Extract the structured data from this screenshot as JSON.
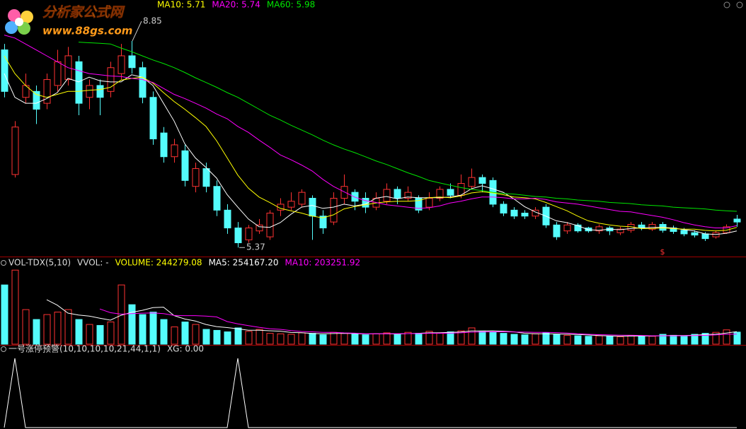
{
  "watermark": {
    "title": "分析家公式网",
    "url": "www.88gs.com"
  },
  "chart_data": [
    {
      "type": "candlestick",
      "open": [
        8.7,
        6.6,
        7.9,
        8.0,
        7.8,
        8.1,
        8.2,
        8.5,
        7.9,
        8.1,
        8.0,
        8.3,
        8.6,
        8.4,
        7.9,
        7.3,
        6.9,
        7.0,
        6.4,
        6.7,
        6.4,
        6.0,
        5.7,
        5.5,
        5.65,
        5.55,
        6.0,
        6.05,
        6.1,
        6.2,
        5.9,
        5.8,
        6.2,
        6.3,
        6.2,
        6.05,
        6.15,
        6.35,
        6.2,
        6.2,
        6.05,
        6.2,
        6.35,
        6.25,
        6.4,
        6.55,
        6.5,
        6.1,
        6.0,
        5.95,
        5.9,
        6.05,
        5.75,
        5.65,
        5.75,
        5.7,
        5.65,
        5.7,
        5.62,
        5.66,
        5.75,
        5.68,
        5.76,
        5.7,
        5.66,
        5.62,
        5.6,
        5.55,
        5.62,
        5.85
      ],
      "high": [
        8.8,
        7.5,
        8.3,
        8.1,
        8.3,
        8.7,
        8.75,
        8.6,
        8.2,
        8.2,
        8.5,
        8.8,
        8.85,
        8.5,
        8.0,
        7.4,
        7.2,
        7.1,
        6.8,
        6.8,
        6.5,
        6.1,
        5.8,
        5.75,
        5.85,
        6.0,
        6.2,
        6.3,
        6.35,
        6.25,
        6.0,
        6.3,
        6.6,
        6.35,
        6.3,
        6.3,
        6.45,
        6.4,
        6.4,
        6.25,
        6.3,
        6.4,
        6.45,
        6.6,
        6.7,
        6.6,
        6.55,
        6.15,
        6.05,
        6.0,
        6.05,
        6.1,
        5.8,
        5.8,
        5.78,
        5.72,
        5.76,
        5.73,
        5.72,
        5.8,
        5.8,
        5.8,
        5.8,
        5.74,
        5.7,
        5.66,
        5.63,
        5.66,
        5.76,
        5.92
      ],
      "low": [
        7.9,
        6.55,
        7.8,
        7.45,
        7.7,
        8.0,
        8.1,
        7.6,
        7.7,
        7.6,
        7.9,
        8.2,
        8.3,
        7.8,
        7.1,
        6.8,
        6.8,
        6.4,
        6.3,
        6.3,
        5.9,
        5.6,
        5.37,
        5.45,
        5.6,
        5.5,
        5.9,
        6.0,
        6.05,
        5.5,
        5.6,
        5.75,
        6.1,
        6.0,
        5.95,
        6.0,
        6.1,
        6.1,
        6.15,
        5.95,
        6.0,
        6.15,
        6.2,
        6.2,
        6.35,
        6.3,
        6.05,
        5.9,
        5.85,
        5.85,
        5.85,
        5.7,
        5.5,
        5.6,
        5.62,
        5.62,
        5.6,
        5.58,
        5.58,
        5.62,
        5.66,
        5.65,
        5.62,
        5.6,
        5.56,
        5.54,
        5.48,
        5.52,
        5.6,
        5.72
      ],
      "close": [
        8.0,
        7.4,
        8.1,
        7.7,
        8.2,
        8.5,
        8.6,
        7.8,
        8.1,
        7.9,
        8.4,
        8.6,
        8.4,
        7.9,
        7.2,
        6.9,
        7.1,
        6.5,
        6.7,
        6.4,
        6.0,
        5.7,
        5.45,
        5.7,
        5.75,
        5.95,
        6.1,
        6.15,
        6.3,
        5.9,
        5.7,
        6.2,
        6.4,
        6.15,
        6.05,
        6.2,
        6.35,
        6.2,
        6.3,
        6.0,
        6.2,
        6.35,
        6.25,
        6.45,
        6.55,
        6.45,
        6.1,
        5.95,
        5.9,
        5.9,
        6.0,
        5.75,
        5.55,
        5.75,
        5.65,
        5.65,
        5.72,
        5.65,
        5.68,
        5.76,
        5.7,
        5.76,
        5.66,
        5.64,
        5.6,
        5.58,
        5.52,
        5.62,
        5.72,
        5.8
      ],
      "up_color": "#ff3232",
      "down_color": "#54fcfc",
      "ylim": [
        5.23,
        9.54
      ],
      "high_label": "8.85",
      "low_label": "5.37",
      "signal": {
        "text": "$",
        "index": 62
      },
      "series": [
        {
          "name": "MA5",
          "color": "#ffffff",
          "values": [
            8.3,
            7.9,
            7.8,
            7.8,
            7.88,
            7.98,
            8.22,
            8.16,
            8.24,
            8.18,
            8.16,
            8.16,
            8.28,
            8.24,
            8.1,
            7.8,
            7.5,
            7.12,
            6.88,
            6.72,
            6.54,
            6.26,
            6.05,
            5.85,
            5.72,
            5.71,
            5.79,
            5.93,
            6.05,
            6.08,
            6.03,
            6.05,
            6.1,
            6.07,
            6.1,
            6.2,
            6.23,
            6.19,
            6.22,
            6.21,
            6.21,
            6.21,
            6.22,
            6.25,
            6.36,
            6.41,
            6.36,
            6.3,
            6.19,
            6.06,
            5.97,
            5.9,
            5.82,
            5.79,
            5.74,
            5.67,
            5.66,
            5.68,
            5.67,
            5.69,
            5.7,
            5.71,
            5.71,
            5.7,
            5.67,
            5.65,
            5.6,
            5.59,
            5.61,
            5.65
          ]
        },
        {
          "name": "MA10",
          "label": "MA10: 5.71",
          "color": "#ffff00",
          "values": [
            8.6,
            8.3,
            8.1,
            7.95,
            7.9,
            7.95,
            8.0,
            8.0,
            8.02,
            8.03,
            8.07,
            8.19,
            8.22,
            8.24,
            8.14,
            7.98,
            7.83,
            7.7,
            7.56,
            7.41,
            7.17,
            6.88,
            6.59,
            6.37,
            6.22,
            6.13,
            6.03,
            5.99,
            5.95,
            5.9,
            5.87,
            5.92,
            6.02,
            6.06,
            6.09,
            6.12,
            6.14,
            6.15,
            6.15,
            6.16,
            6.21,
            6.22,
            6.21,
            6.24,
            6.29,
            6.31,
            6.29,
            6.26,
            6.22,
            6.21,
            6.19,
            6.13,
            6.06,
            5.99,
            5.9,
            5.82,
            5.78,
            5.75,
            5.73,
            5.72,
            5.69,
            5.69,
            5.7,
            5.69,
            5.68,
            5.68,
            5.66,
            5.65,
            5.66,
            5.71
          ]
        },
        {
          "name": "MA20",
          "label": "MA20: 5.74",
          "color": "#ff00ff",
          "values": [
            8.95,
            8.9,
            8.8,
            8.7,
            8.6,
            8.5,
            8.4,
            8.35,
            8.3,
            8.28,
            8.26,
            8.25,
            8.22,
            8.2,
            8.15,
            8.05,
            7.95,
            7.88,
            7.8,
            7.72,
            7.62,
            7.54,
            7.41,
            7.31,
            7.18,
            7.06,
            6.93,
            6.85,
            6.76,
            6.66,
            6.52,
            6.4,
            6.31,
            6.22,
            6.16,
            6.13,
            6.09,
            6.07,
            6.05,
            6.03,
            6.04,
            6.07,
            6.12,
            6.15,
            6.19,
            6.22,
            6.22,
            6.21,
            6.19,
            6.19,
            6.2,
            6.18,
            6.14,
            6.12,
            6.1,
            6.07,
            6.04,
            6.01,
            5.98,
            5.97,
            5.94,
            5.91,
            5.88,
            5.84,
            5.79,
            5.75,
            5.72,
            5.7,
            5.7,
            5.74
          ]
        },
        {
          "name": "MA60",
          "label": "MA60: 5.98",
          "color": "#00e600",
          "values": [
            null,
            null,
            null,
            null,
            null,
            null,
            null,
            8.83,
            8.82,
            8.81,
            8.8,
            8.73,
            8.67,
            8.6,
            8.53,
            8.47,
            8.4,
            8.32,
            8.23,
            8.15,
            8.07,
            7.98,
            7.9,
            7.8,
            7.7,
            7.6,
            7.52,
            7.43,
            7.35,
            7.27,
            7.18,
            7.1,
            7.03,
            6.97,
            6.9,
            6.83,
            6.77,
            6.7,
            6.63,
            6.57,
            6.5,
            6.46,
            6.42,
            6.38,
            6.35,
            6.33,
            6.3,
            6.28,
            6.27,
            6.25,
            6.23,
            6.22,
            6.2,
            6.19,
            6.17,
            6.16,
            6.15,
            6.13,
            6.12,
            6.11,
            6.09,
            6.08,
            6.07,
            6.05,
            6.04,
            6.03,
            6.02,
            6.0,
            5.99,
            5.98
          ]
        }
      ]
    },
    {
      "type": "bar",
      "title": "VOL-TDX(5,10)",
      "subtitle": "VVOL: -",
      "volume_label": "VOLUME: 244279.08",
      "label_color": "#ffff00",
      "ylim": [
        0,
        1560000
      ],
      "values": [
        1200000,
        1500000,
        700000,
        500000,
        600000,
        650000,
        700000,
        500000,
        400000,
        380000,
        450000,
        1200000,
        800000,
        600000,
        650000,
        500000,
        350000,
        450000,
        400000,
        300000,
        280000,
        250000,
        330000,
        260000,
        300000,
        220000,
        210000,
        200000,
        230000,
        220000,
        190000,
        240000,
        220000,
        200000,
        190000,
        210000,
        230000,
        200000,
        240000,
        220000,
        260000,
        230000,
        250000,
        270000,
        330000,
        260000,
        240000,
        220000,
        200000,
        190000,
        210000,
        230000,
        200000,
        180000,
        170000,
        160000,
        170000,
        160000,
        150000,
        180000,
        170000,
        160000,
        200000,
        180000,
        170000,
        200000,
        220000,
        240000,
        290000,
        244279.08
      ],
      "series": [
        {
          "name": "MA5",
          "label": "MA5: 254167.20",
          "color": "#ffffff",
          "values": [
            null,
            null,
            null,
            null,
            900000,
            790000,
            630000,
            590000,
            570000,
            526000,
            486000,
            586000,
            646000,
            686000,
            740000,
            750000,
            580000,
            510000,
            470000,
            400000,
            356000,
            336000,
            312000,
            284000,
            284000,
            272000,
            264000,
            238000,
            232000,
            216000,
            210000,
            216000,
            220000,
            214000,
            208000,
            212000,
            210000,
            206000,
            214000,
            220000,
            230000,
            230000,
            240000,
            246000,
            268000,
            268000,
            270000,
            264000,
            250000,
            222000,
            212000,
            210000,
            206000,
            202000,
            198000,
            188000,
            176000,
            168000,
            162000,
            164000,
            166000,
            164000,
            172000,
            178000,
            176000,
            182000,
            194000,
            202000,
            224000,
            254167.2
          ]
        },
        {
          "name": "MA10",
          "label": "MA10: 203251.92",
          "color": "#ff00ff",
          "values": [
            null,
            null,
            null,
            null,
            null,
            null,
            null,
            null,
            null,
            713000,
            638000,
            608000,
            618000,
            628000,
            633000,
            618000,
            583000,
            578000,
            578000,
            570000,
            553000,
            458000,
            411000,
            377000,
            342000,
            314000,
            300000,
            275000,
            258000,
            250000,
            241000,
            240000,
            229000,
            223000,
            212000,
            211000,
            213000,
            213000,
            214000,
            214000,
            221000,
            220000,
            223000,
            230000,
            244000,
            249000,
            250000,
            252000,
            248000,
            245000,
            240000,
            240000,
            235000,
            226000,
            210000,
            200000,
            193000,
            187000,
            182000,
            181000,
            177000,
            170000,
            170000,
            170000,
            170000,
            174000,
            179000,
            187000,
            201000,
            203251.92
          ]
        }
      ]
    },
    {
      "type": "line",
      "title": "一号涨停预警(10,10,10,10,21,44,1,1)",
      "ylim": [
        0,
        1
      ],
      "series": [
        {
          "name": "XG",
          "label": "XG: 0.00",
          "color": "#ffffff",
          "values": [
            0,
            1,
            0,
            0,
            0,
            0,
            0,
            0,
            0,
            0,
            0,
            0,
            0,
            0,
            0,
            0,
            0,
            0,
            0,
            0,
            0,
            0,
            1,
            0,
            0,
            0,
            0,
            0,
            0,
            0,
            0,
            0,
            0,
            0,
            0,
            0,
            0,
            0,
            0,
            0,
            0,
            0,
            0,
            0,
            0,
            0,
            0,
            0,
            0,
            0,
            0,
            0,
            0,
            0,
            0,
            0,
            0,
            0,
            0,
            0,
            0,
            0,
            0,
            0,
            0,
            0,
            0,
            0,
            0,
            0
          ]
        }
      ]
    }
  ]
}
